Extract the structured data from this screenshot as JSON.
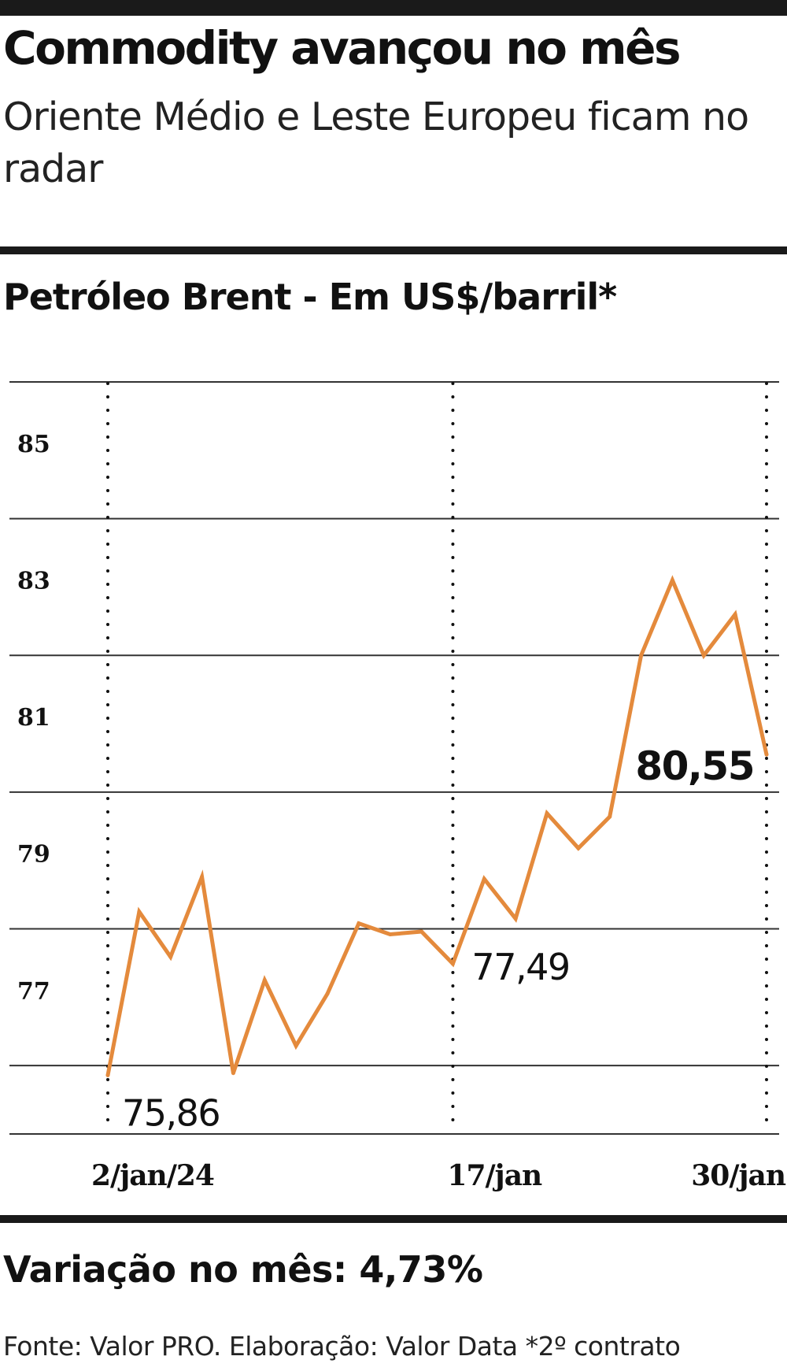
{
  "headline": "Commodity avançou no mês",
  "subtitle": "Oriente Médio e Leste Europeu ficam no radar",
  "variation": "Variação no mês: 4,73%",
  "source": "Fonte: Valor PRO. Elaboração: Valor Data *2º contrato",
  "colors": {
    "line": "#e48a3c",
    "rules": "#1a1a1a",
    "grid": "#333333"
  },
  "chart_data": {
    "type": "line",
    "title": "Petróleo Brent - Em US$/barril*",
    "xlabel": "",
    "ylabel": "",
    "ylim": [
      75,
      86
    ],
    "yticks": [
      {
        "value": 85,
        "label": "85"
      },
      {
        "value": 83,
        "label": "83"
      },
      {
        "value": 81,
        "label": "81"
      },
      {
        "value": 79,
        "label": "79"
      },
      {
        "value": 77,
        "label": "77"
      }
    ],
    "x_ticks": [
      {
        "index": 0,
        "label": "2/jan/24"
      },
      {
        "index": 11,
        "label": "17/jan"
      },
      {
        "index": 21,
        "label": "30/jan"
      }
    ],
    "grid": true,
    "series": [
      {
        "values": [
          75.86,
          78.25,
          77.59,
          78.76,
          75.89,
          77.25,
          76.29,
          77.05,
          78.08,
          77.92,
          77.96,
          77.49,
          78.73,
          78.15,
          79.69,
          79.18,
          79.64,
          82.0,
          83.1,
          82.0,
          82.6,
          80.55
        ]
      }
    ],
    "annotations": [
      {
        "index": 0,
        "label": "75,86",
        "bold": false
      },
      {
        "index": 11,
        "label": "77,49",
        "bold": false
      },
      {
        "index": 21,
        "label": "80,55",
        "bold": true
      }
    ]
  }
}
